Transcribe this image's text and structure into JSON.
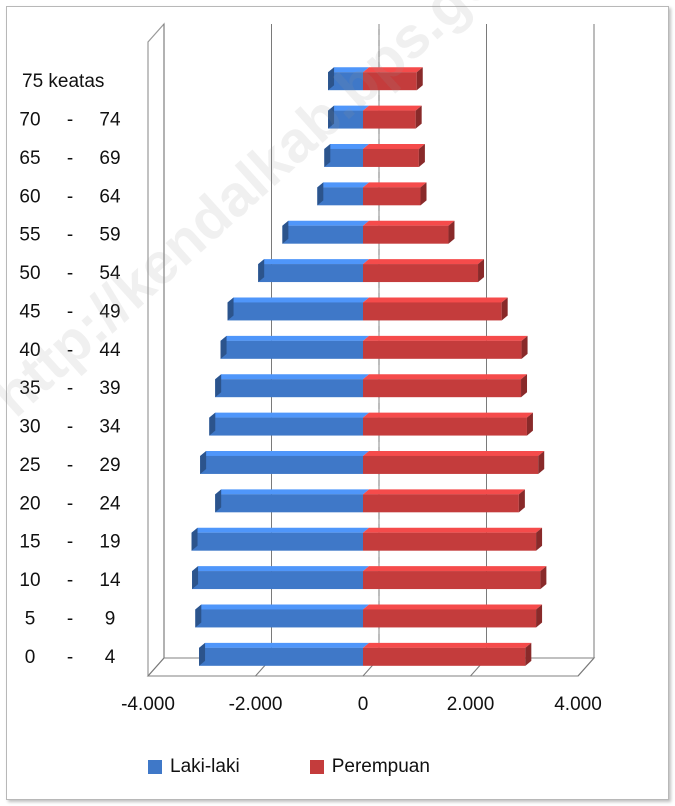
{
  "chart_data": {
    "type": "bar",
    "orientation": "horizontal",
    "style": "population-pyramid-3d",
    "categories": [
      "0 - 4",
      "5 - 9",
      "10 - 14",
      "15 - 19",
      "20 - 24",
      "25 - 29",
      "30 - 34",
      "35 - 39",
      "40 - 44",
      "45 - 49",
      "50 - 54",
      "55 - 59",
      "60 - 64",
      "65 - 69",
      "70 - 74",
      "75 keatas"
    ],
    "category_labels": [
      [
        "0",
        "4"
      ],
      [
        "5",
        "9"
      ],
      [
        "10",
        "14"
      ],
      [
        "15",
        "19"
      ],
      [
        "20",
        "24"
      ],
      [
        "25",
        "29"
      ],
      [
        "30",
        "34"
      ],
      [
        "35",
        "39"
      ],
      [
        "40",
        "44"
      ],
      [
        "45",
        "49"
      ],
      [
        "50",
        "54"
      ],
      [
        "55",
        "59"
      ],
      [
        "60",
        "64"
      ],
      [
        "65",
        "69"
      ],
      [
        "70",
        "74"
      ],
      [
        "75 keatas",
        ""
      ]
    ],
    "range_separator": "-",
    "series": [
      {
        "name": "Laki-laki",
        "color": "#3f78c8",
        "values": [
          -3050,
          -3120,
          -3180,
          -3190,
          -2750,
          -3030,
          -2860,
          -2750,
          -2650,
          -2520,
          -1950,
          -1500,
          -850,
          -720,
          -650,
          -650
        ]
      },
      {
        "name": "Perempuan",
        "color": "#c43c3c",
        "values": [
          3020,
          3220,
          3300,
          3220,
          2900,
          3260,
          3050,
          2940,
          2950,
          2580,
          2140,
          1590,
          1070,
          1040,
          980,
          1000
        ]
      }
    ],
    "xlim": [
      -4000,
      4000
    ],
    "xticks": [
      -4000,
      -2000,
      0,
      2000,
      4000
    ],
    "xtick_labels": [
      "-4.000",
      "-2.000",
      "0",
      "2.000",
      "4.000"
    ],
    "grid": "vertical",
    "legend": "bottom",
    "watermark": "http://kendalkab.bps.go.id"
  }
}
